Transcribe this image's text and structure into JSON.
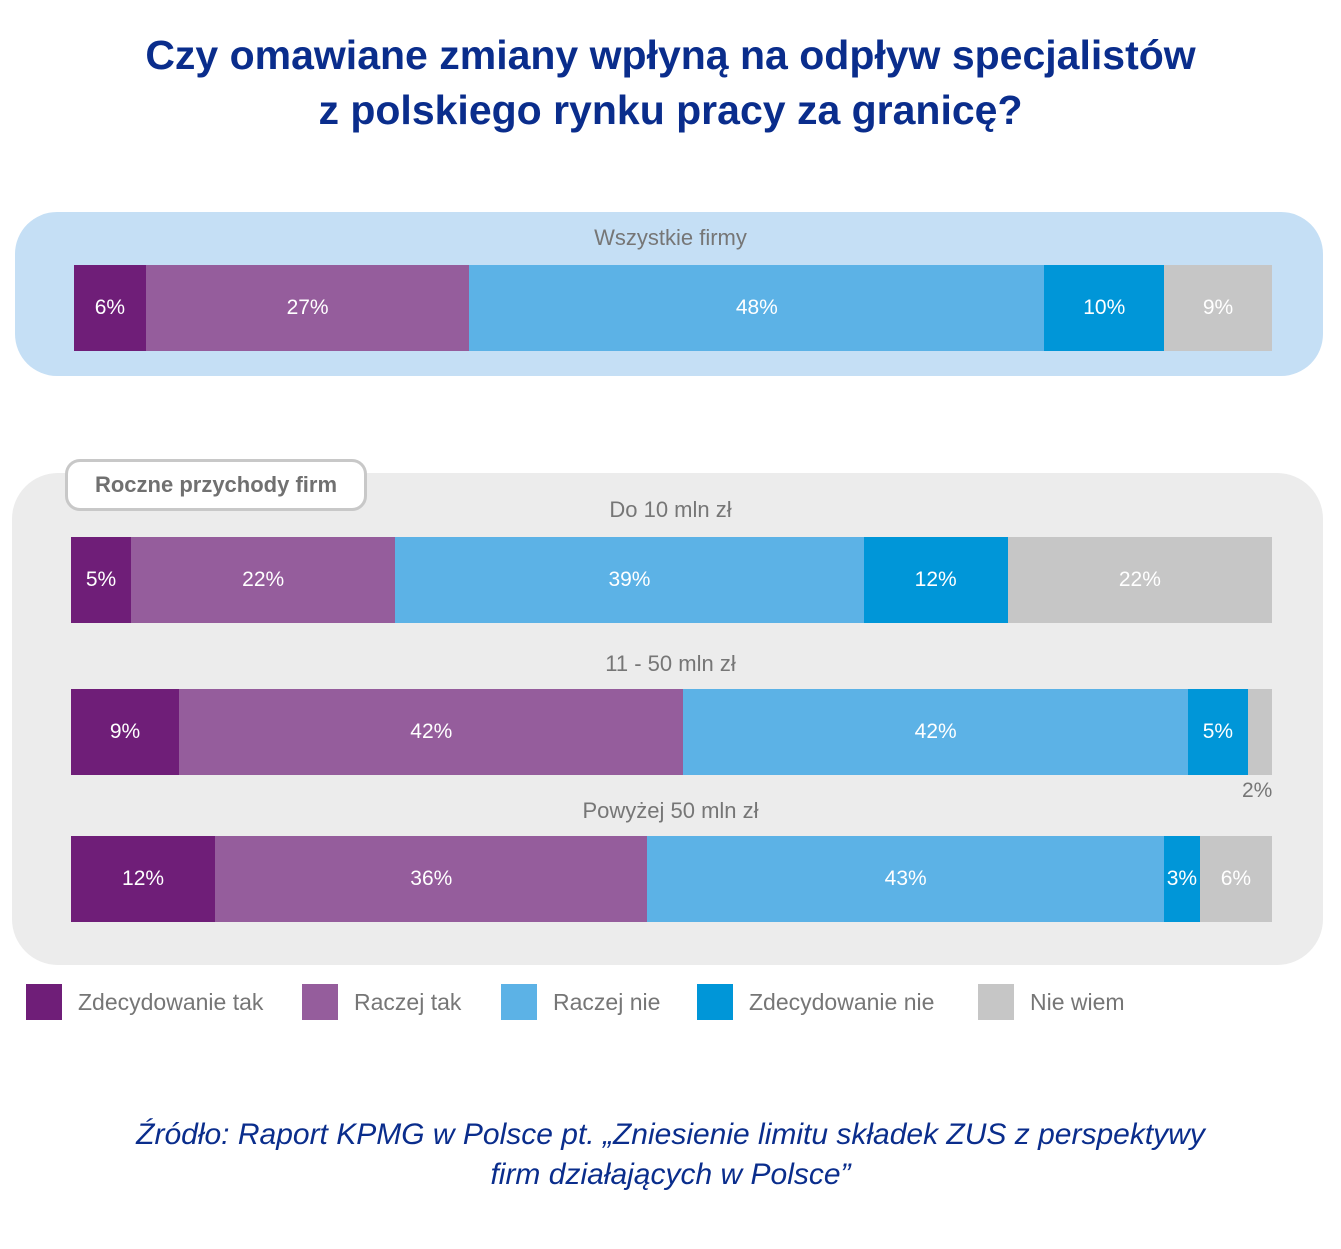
{
  "title_lines": [
    "Czy omawiane zmiany wpłyną na odpływ specjalistów",
    "z polskiego rynku pracy za granicę?"
  ],
  "group_tag": "Roczne przychody firm",
  "source_lines": [
    "Źródło: Raport KPMG w Polsce pt. „Zniesienie limitu składek ZUS z perspektywy",
    "firm działających w Polsce”"
  ],
  "colors": {
    "Zdecydowanie tak": "#6f1e78",
    "Raczej tak": "#955d9c",
    "Raczej nie": "#5cb2e6",
    "Zdecydowanie nie": "#0096d8",
    "Nie wiem": "#c6c6c6",
    "panel_top": "#c5dff5",
    "panel_bottom": "#ececec",
    "title": "#0a2d8c"
  },
  "chart_data": {
    "type": "bar",
    "orientation": "horizontal-stacked-100",
    "title": "Czy omawiane zmiany wpłyną na odpływ specjalistów z polskiego rynku pracy za granicę?",
    "series_names": [
      "Zdecydowanie tak",
      "Raczej tak",
      "Raczej nie",
      "Zdecydowanie nie",
      "Nie wiem"
    ],
    "categories": [
      "Wszystkie firmy",
      "Do 10 mln zł",
      "11 - 50 mln zł",
      "Powyżej 50 mln zł"
    ],
    "values": [
      [
        6,
        27,
        48,
        10,
        9
      ],
      [
        5,
        22,
        39,
        12,
        22
      ],
      [
        9,
        42,
        42,
        5,
        2
      ],
      [
        12,
        36,
        43,
        3,
        6
      ]
    ],
    "unit": "%",
    "legend": "bottom"
  }
}
